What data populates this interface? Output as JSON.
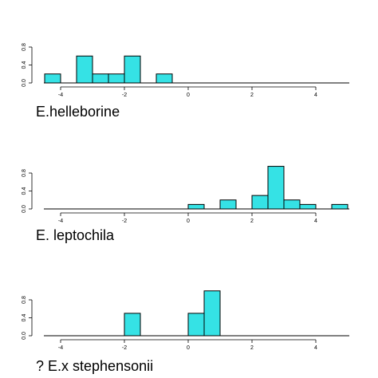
{
  "chart_data": [
    {
      "type": "bar",
      "title": "E.helleborine",
      "bin_width": 0.5,
      "x_ticks": [
        -4,
        -2,
        0,
        2,
        4
      ],
      "y_ticks": [
        0.0,
        0.4,
        0.8
      ],
      "xlim": [
        -4.5,
        5
      ],
      "ylim": [
        0,
        0.88
      ],
      "bins": [
        {
          "start": -4.5,
          "value": 0.2
        },
        {
          "start": -3.5,
          "value": 0.6
        },
        {
          "start": -3.0,
          "value": 0.2
        },
        {
          "start": -2.5,
          "value": 0.2
        },
        {
          "start": -2.0,
          "value": 0.6
        },
        {
          "start": -1.0,
          "value": 0.2
        }
      ]
    },
    {
      "type": "bar",
      "title": "E. leptochila",
      "bin_width": 0.5,
      "x_ticks": [
        -4,
        -2,
        0,
        2,
        4
      ],
      "y_ticks": [
        0.0,
        0.4,
        0.8
      ],
      "xlim": [
        -4.5,
        5
      ],
      "ylim": [
        0,
        0.88
      ],
      "bins": [
        {
          "start": 0.0,
          "value": 0.1
        },
        {
          "start": 1.0,
          "value": 0.2
        },
        {
          "start": 2.0,
          "value": 0.3
        },
        {
          "start": 2.5,
          "value": 0.95
        },
        {
          "start": 3.0,
          "value": 0.2
        },
        {
          "start": 3.5,
          "value": 0.1
        },
        {
          "start": 4.5,
          "value": 0.1
        }
      ]
    },
    {
      "type": "bar",
      "title": "? E.x stephensonii",
      "bin_width": 0.5,
      "x_ticks": [
        -4,
        -2,
        0,
        2,
        4
      ],
      "y_ticks": [
        0.0,
        0.4,
        0.8
      ],
      "xlim": [
        -4.5,
        5
      ],
      "ylim": [
        0,
        0.88
      ],
      "bins": [
        {
          "start": -2.0,
          "value": 0.5
        },
        {
          "start": 0.0,
          "value": 0.5
        },
        {
          "start": 0.5,
          "value": 1.0
        }
      ]
    }
  ],
  "colors": {
    "bar_fill": "#35e2e5",
    "bar_stroke": "#000000",
    "axis": "#000000"
  }
}
